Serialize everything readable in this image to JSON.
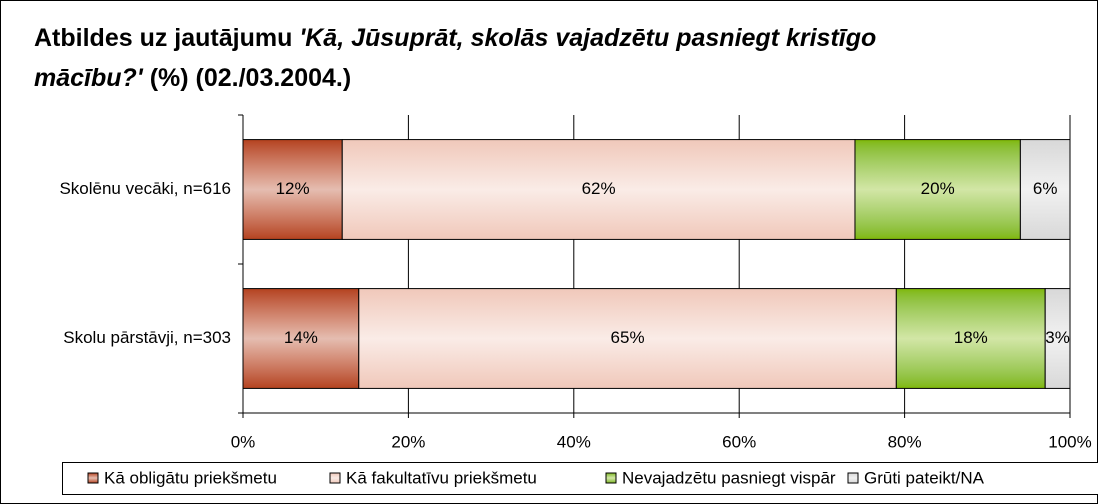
{
  "chart_data": {
    "type": "stacked_bar_horizontal",
    "title": {
      "plain": "Atbildes uz jautājumu",
      "italic": "'Kā, Jūsuprāt, skolās vajadzētu pasniegt kristīgo mācību?'",
      "suffix": "(%) (02./03.2004.)"
    },
    "categories": [
      "Skolēnu vecāki, n=616",
      "Skolu pārstāvji, n=303"
    ],
    "series": [
      {
        "name": "Kā obligātu priekšmetu",
        "color": "#b4421e",
        "values": [
          12,
          14
        ],
        "value_labels": [
          "12%",
          "14%"
        ]
      },
      {
        "name": "Kā fakultatīvu priekšmetu",
        "color": "#f0c8ba",
        "values": [
          62,
          65
        ],
        "value_labels": [
          "62%",
          "65%"
        ]
      },
      {
        "name": "Nevajadzētu pasniegt vispār",
        "color": "#7fb800",
        "values": [
          20,
          18
        ],
        "value_labels": [
          "20%",
          "18%"
        ]
      },
      {
        "name": "Grūti pateikt/NA",
        "color": "#d8d8d8",
        "values": [
          6,
          3
        ],
        "value_labels": [
          "6%",
          "3%"
        ]
      }
    ],
    "xlim": [
      0,
      100
    ],
    "xticks": [
      {
        "value": 0,
        "label": "0%"
      },
      {
        "value": 20,
        "label": "20%"
      },
      {
        "value": 40,
        "label": "40%"
      },
      {
        "value": 60,
        "label": "60%"
      },
      {
        "value": 80,
        "label": "80%"
      },
      {
        "value": 100,
        "label": "100%"
      }
    ],
    "grid": true,
    "legend": "bottom"
  }
}
